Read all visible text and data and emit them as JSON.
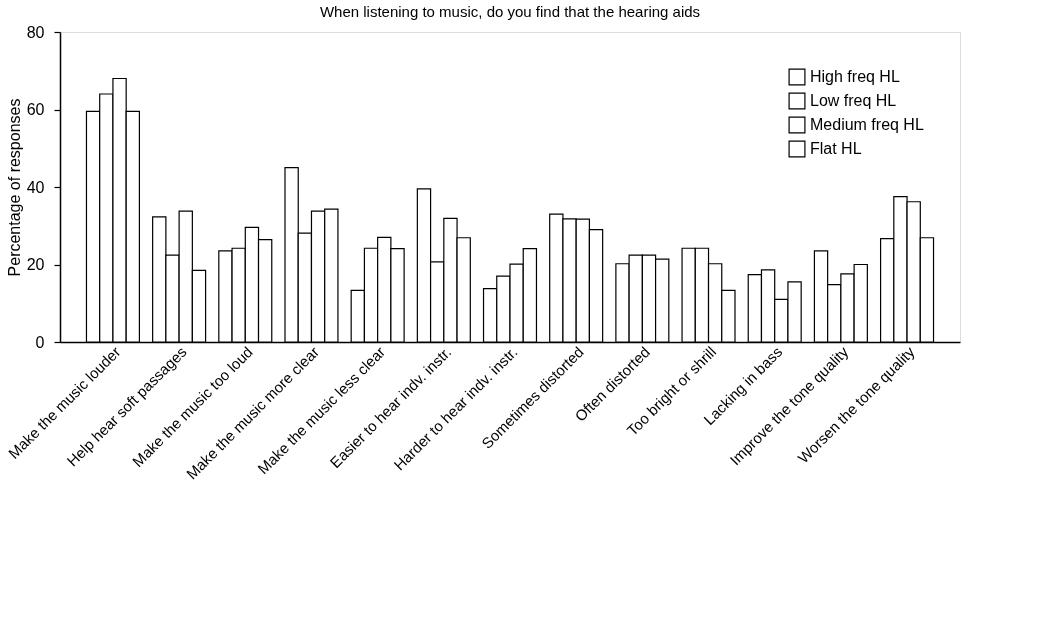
{
  "chart_data": {
    "type": "bar",
    "title": "When listening to music, do you find that the hearing aids",
    "ylabel": "Percentage of responses",
    "categories": [
      "Make the music louder",
      "Help hear soft passages",
      "Make the music too loud",
      "Make the music more clear",
      "Make the music less clear",
      "Easier to hear indv. instr.",
      "Harder to hear indv. instr.",
      "Sometimes distorted",
      "Often distorted",
      "Too bright or shrill",
      "Lacking in bass",
      "Improve the tone quality",
      "Worsen the tone quality"
    ],
    "series": [
      {
        "name": "High freq HL",
        "color": "#ffffff",
        "values": [
          59.5,
          32.3,
          23.5,
          45,
          13.3,
          39.5,
          13.8,
          33,
          20.2,
          24.2,
          17.4,
          23.5,
          26.7
        ]
      },
      {
        "name": "Low freq HL",
        "color": "#ffffff",
        "values": [
          64,
          22.4,
          24.2,
          28.1,
          24.2,
          20.7,
          17,
          31.8,
          22.4,
          24.2,
          18.6,
          14.8,
          37.5
        ]
      },
      {
        "name": "Medium freq HL",
        "color": "#ffffff",
        "values": [
          68,
          33.8,
          29.6,
          33.8,
          27,
          31.9,
          20.1,
          31.7,
          22.4,
          20.2,
          11,
          17.6,
          36.2
        ]
      },
      {
        "name": "Flat HL",
        "color": "#ffffff",
        "values": [
          59.5,
          18.5,
          26.4,
          34.3,
          24.1,
          26.9,
          24.1,
          29,
          21.4,
          13.3,
          15.5,
          20,
          26.9
        ]
      }
    ],
    "ylim": [
      0,
      80
    ],
    "yticks": [
      0,
      20,
      40,
      60,
      80
    ],
    "grid": false,
    "legend": "top right"
  }
}
